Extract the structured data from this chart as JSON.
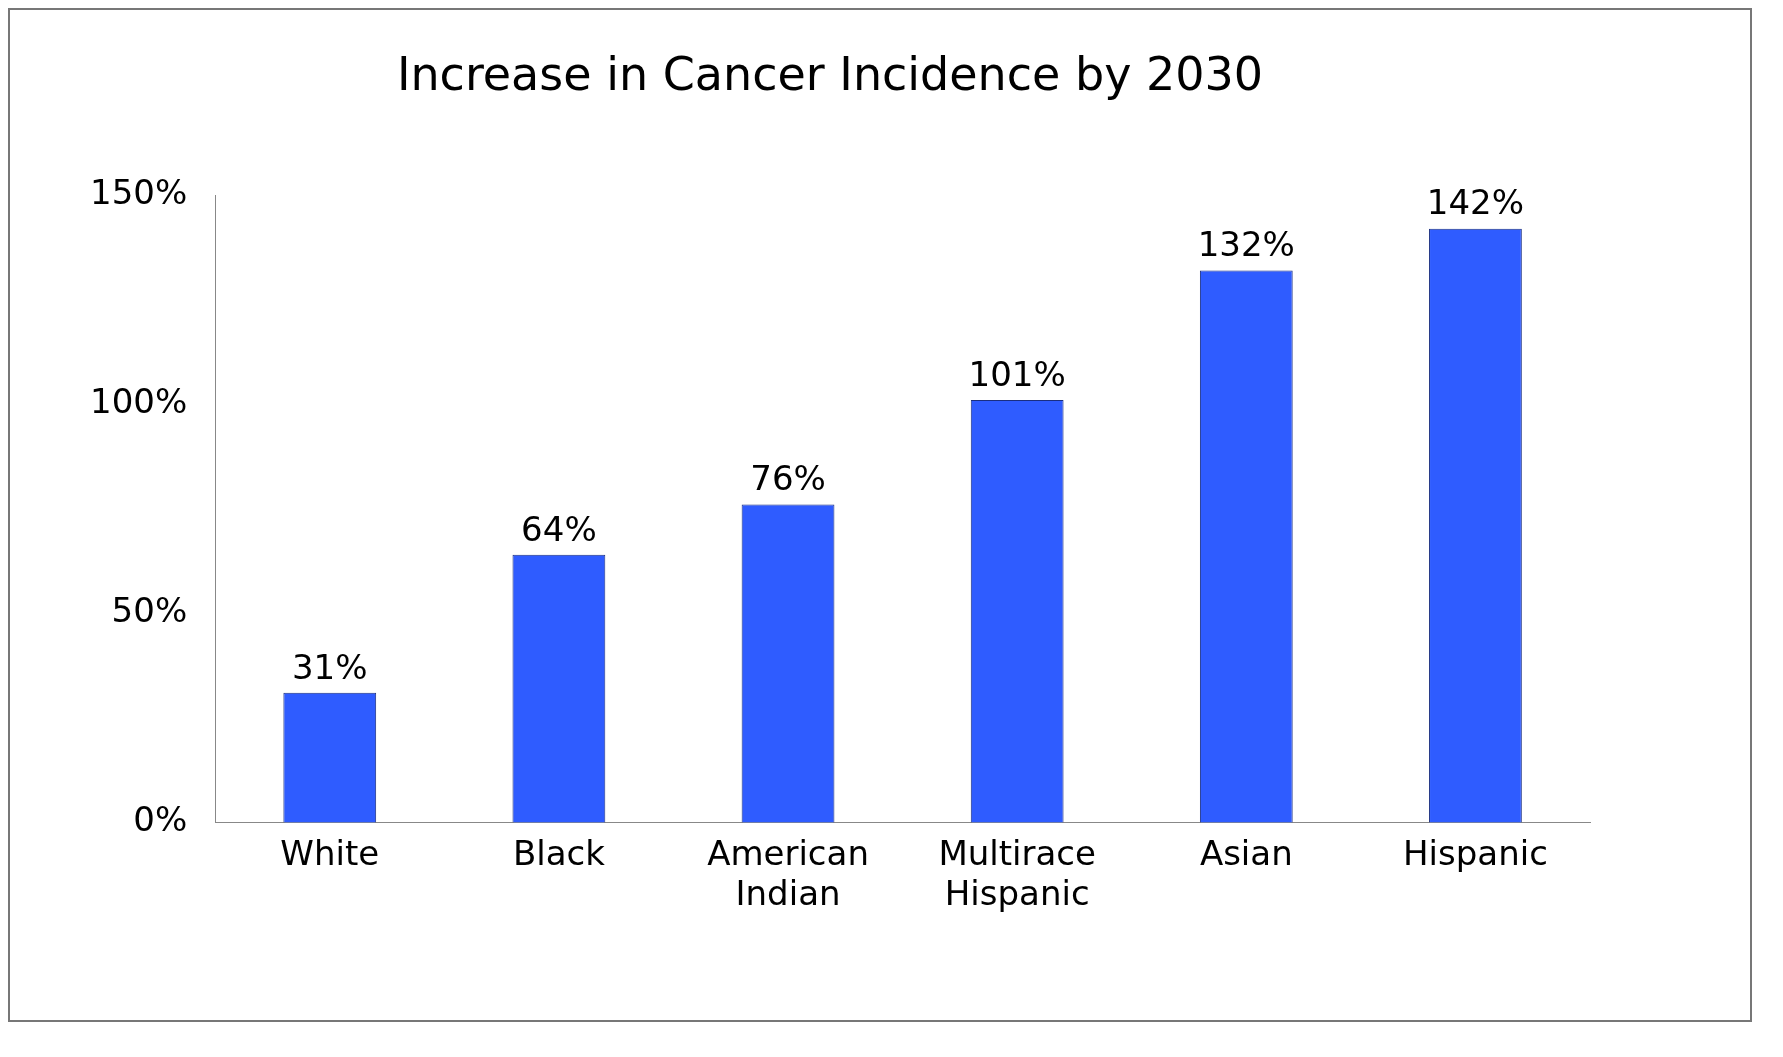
{
  "chart_data": {
    "type": "bar",
    "title": "Increase in Cancer Incidence by 2030",
    "categories": [
      "White",
      "Black",
      "American Indian",
      "Multirace Hispanic",
      "Asian",
      "Hispanic"
    ],
    "values": [
      31,
      64,
      76,
      101,
      132,
      142
    ],
    "value_labels": [
      "31%",
      "64%",
      "76%",
      "101%",
      "132%",
      "142%"
    ],
    "color": "#2f5cff",
    "ylim": [
      0,
      150
    ],
    "yticks": [
      {
        "value": 0,
        "label": "0%"
      },
      {
        "value": 50,
        "label": "50%"
      },
      {
        "value": 100,
        "label": "100%"
      },
      {
        "value": 150,
        "label": "150%"
      }
    ],
    "grid": false
  }
}
